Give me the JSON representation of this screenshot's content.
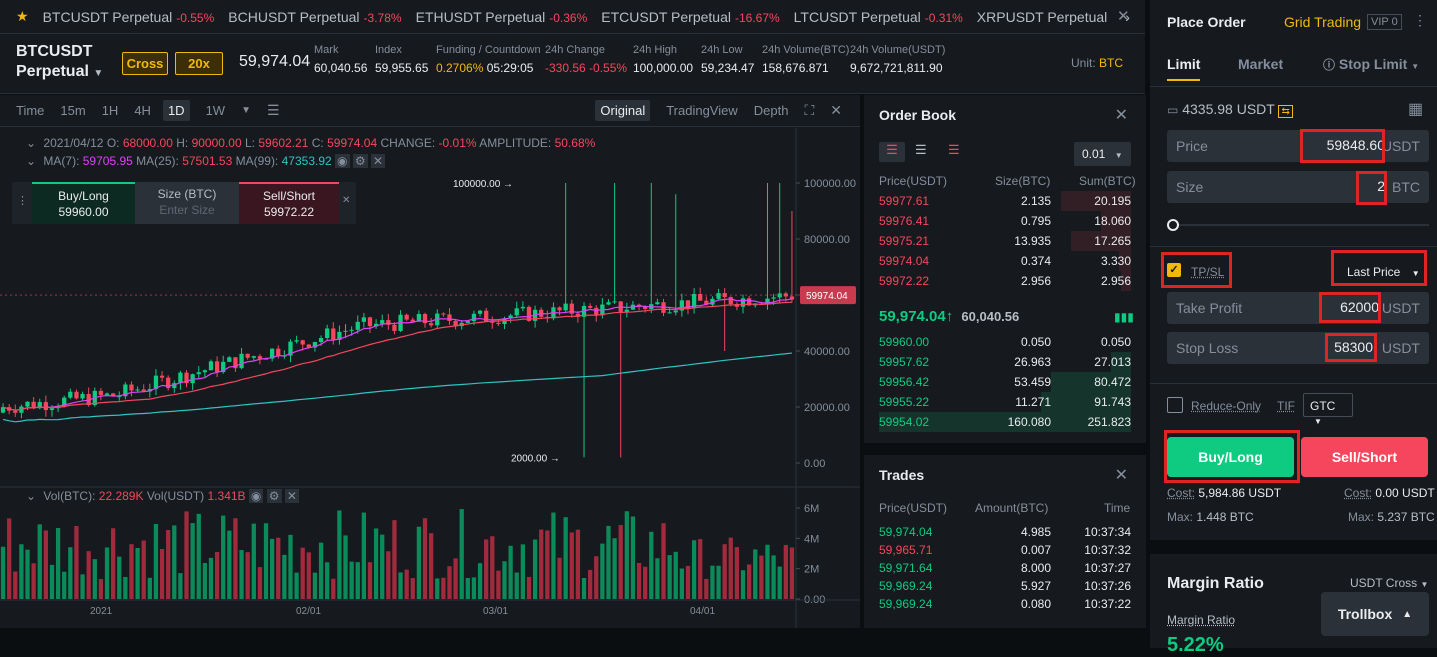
{
  "ticker": {
    "items": [
      {
        "symbol": "BTCUSDT Perpetual",
        "change": "-0.55%"
      },
      {
        "symbol": "BCHUSDT Perpetual",
        "change": "-3.78%"
      },
      {
        "symbol": "ETHUSDT Perpetual",
        "change": "-0.36%"
      },
      {
        "symbol": "ETCUSDT Perpetual",
        "change": "-16.67%"
      },
      {
        "symbol": "LTCUSDT Perpetual",
        "change": "-0.31%"
      },
      {
        "symbol": "XRPUSDT Perpetual",
        "change": ""
      }
    ],
    "close": "✕"
  },
  "header": {
    "symbol_line1": "BTCUSDT",
    "symbol_line2": "Perpetual",
    "margin_mode": "Cross",
    "leverage": "20x",
    "last_price": "59,974.04",
    "stats": [
      {
        "label": "Mark",
        "value": "60,040.56"
      },
      {
        "label": "Index",
        "value": "59,955.65"
      },
      {
        "label": "Funding / Countdown",
        "value": "0.2706%",
        "value2": "05:29:05"
      },
      {
        "label": "24h Change",
        "value": "-330.56 -0.55%"
      },
      {
        "label": "24h High",
        "value": "100,000.00"
      },
      {
        "label": "24h Low",
        "value": "59,234.47"
      },
      {
        "label": "24h Volume(BTC)",
        "value": "158,676.871"
      },
      {
        "label": "24h Volume(USDT)",
        "value": "9,672,721,811.90"
      }
    ],
    "unit_label": "Unit:",
    "unit_value": "BTC"
  },
  "chart_toolbar": {
    "intervals": [
      "Time",
      "15m",
      "1H",
      "4H",
      "1D",
      "1W"
    ],
    "active_interval": "1D",
    "views": [
      "Original",
      "TradingView",
      "Depth"
    ],
    "active_view": "Original"
  },
  "chart_legend": {
    "date": "2021/04/12",
    "o_label": "O:",
    "o": "68000.00",
    "h_label": "H:",
    "h": "90000.00",
    "l_label": "L:",
    "l": "59602.21",
    "c_label": "C:",
    "c": "59974.04",
    "change_label": "CHANGE:",
    "change": "-0.01%",
    "amp_label": "AMPLITUDE:",
    "amplitude": "50.68%",
    "ma7_label": "MA(7):",
    "ma7": "59705.95",
    "ma25_label": "MA(25):",
    "ma25": "57501.53",
    "ma99_label": "MA(99):",
    "ma99": "47353.92",
    "vol_btc_label": "Vol(BTC):",
    "vol_btc": "22.289K",
    "vol_usdt_label": "Vol(USDT)",
    "vol_usdt": "1.341B"
  },
  "quick_trade": {
    "buy_label": "Buy/Long",
    "buy_price": "59960.00",
    "size_label": "Size (BTC)",
    "size_placeholder": "Enter Size",
    "sell_label": "Sell/Short",
    "sell_price": "59972.22"
  },
  "chart_data": {
    "type": "candlestick",
    "price_axis_ticks": [
      "100000.00",
      "80000.00",
      "60000.00",
      "40000.00",
      "20000.00",
      "0.00"
    ],
    "volume_axis_ticks": [
      "6M",
      "4M",
      "2M",
      "0.00"
    ],
    "x_ticks": [
      "2021",
      "02/01",
      "03/01",
      "04/01"
    ],
    "ylim": [
      0,
      100000
    ],
    "annotations": {
      "max": "100000.00",
      "min": "2000.00"
    },
    "last_price_label": "59974.04",
    "ma_colors": {
      "ma7": "#f0b90b",
      "ma25": "#e040fb",
      "ma99": "#2ec4c4"
    }
  },
  "orderbook": {
    "title": "Order Book",
    "precision": "0.01",
    "headers": [
      "Price(USDT)",
      "Size(BTC)",
      "Sum(BTC)"
    ],
    "asks": [
      [
        "59977.61",
        "2.135",
        "20.195"
      ],
      [
        "59976.41",
        "0.795",
        "18.060"
      ],
      [
        "59975.21",
        "13.935",
        "17.265"
      ],
      [
        "59974.04",
        "0.374",
        "3.330"
      ],
      [
        "59972.22",
        "2.956",
        "2.956"
      ]
    ],
    "mid_price": "59,974.04",
    "mid_arrow": "↑",
    "mark_price": "60,040.56",
    "bids": [
      [
        "59960.00",
        "0.050",
        "0.050"
      ],
      [
        "59957.62",
        "26.963",
        "27.013"
      ],
      [
        "59956.42",
        "53.459",
        "80.472"
      ],
      [
        "59955.22",
        "11.271",
        "91.743"
      ],
      [
        "59954.02",
        "160.080",
        "251.823"
      ]
    ]
  },
  "trades": {
    "title": "Trades",
    "headers": [
      "Price(USDT)",
      "Amount(BTC)",
      "Time"
    ],
    "rows": [
      {
        "price": "59,974.04",
        "amount": "4.985",
        "time": "10:37:34",
        "side": "buy"
      },
      {
        "price": "59,965.71",
        "amount": "0.007",
        "time": "10:37:32",
        "side": "sell"
      },
      {
        "price": "59,971.64",
        "amount": "8.000",
        "time": "10:37:27",
        "side": "buy"
      },
      {
        "price": "59,969.24",
        "amount": "5.927",
        "time": "10:37:26",
        "side": "buy"
      },
      {
        "price": "59,969.24",
        "amount": "0.080",
        "time": "10:37:22",
        "side": "buy"
      }
    ]
  },
  "order_panel": {
    "title": "Place Order",
    "grid_trading": "Grid Trading",
    "vip": "VIP 0",
    "tabs": [
      "Limit",
      "Market",
      "Stop Limit"
    ],
    "balance": "4335.98 USDT",
    "price_label": "Price",
    "price_value": "59848.60",
    "price_unit": "USDT",
    "size_label": "Size",
    "size_value": "2",
    "size_unit": "BTC",
    "tpsl_label": "TP/SL",
    "trigger_type": "Last Price",
    "tp_label": "Take Profit",
    "tp_value": "62000",
    "tp_unit": "USDT",
    "sl_label": "Stop Loss",
    "sl_value": "58300",
    "sl_unit": "USDT",
    "reduce_only": "Reduce-Only",
    "tif_label": "TIF",
    "tif_value": "GTC",
    "buy_button": "Buy/Long",
    "sell_button": "Sell/Short",
    "buy_cost_label": "Cost:",
    "buy_cost": "5,984.86 USDT",
    "sell_cost_label": "Cost:",
    "sell_cost": "0.00 USDT",
    "buy_max_label": "Max:",
    "buy_max": "1.448 BTC",
    "sell_max_label": "Max:",
    "sell_max": "5.237 BTC",
    "margin_title": "Margin Ratio",
    "margin_mode": "USDT Cross",
    "margin_ratio_label": "Margin Ratio",
    "margin_ratio_value": "5.22%",
    "trollbox": "Trollbox"
  }
}
